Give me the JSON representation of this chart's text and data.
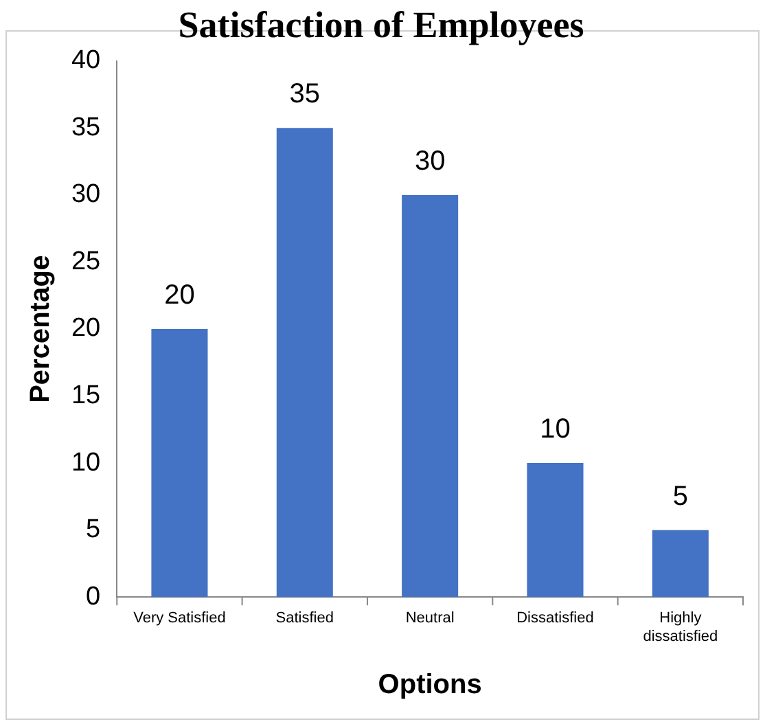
{
  "chart_data": {
    "type": "bar",
    "title": "Satisfaction of Employees",
    "xlabel": "Options",
    "ylabel": "Percentage",
    "categories": [
      "Very Satisfied",
      "Satisfied",
      "Neutral",
      "Dissatisfied",
      "Highly dissatisfied"
    ],
    "values": [
      20,
      35,
      30,
      10,
      5
    ],
    "color": "#4472c4",
    "ylim": [
      0,
      40
    ],
    "yticks": [
      0,
      5,
      10,
      15,
      20,
      25,
      30,
      35,
      40
    ],
    "grid": false,
    "legend": false,
    "data_labels": true
  }
}
